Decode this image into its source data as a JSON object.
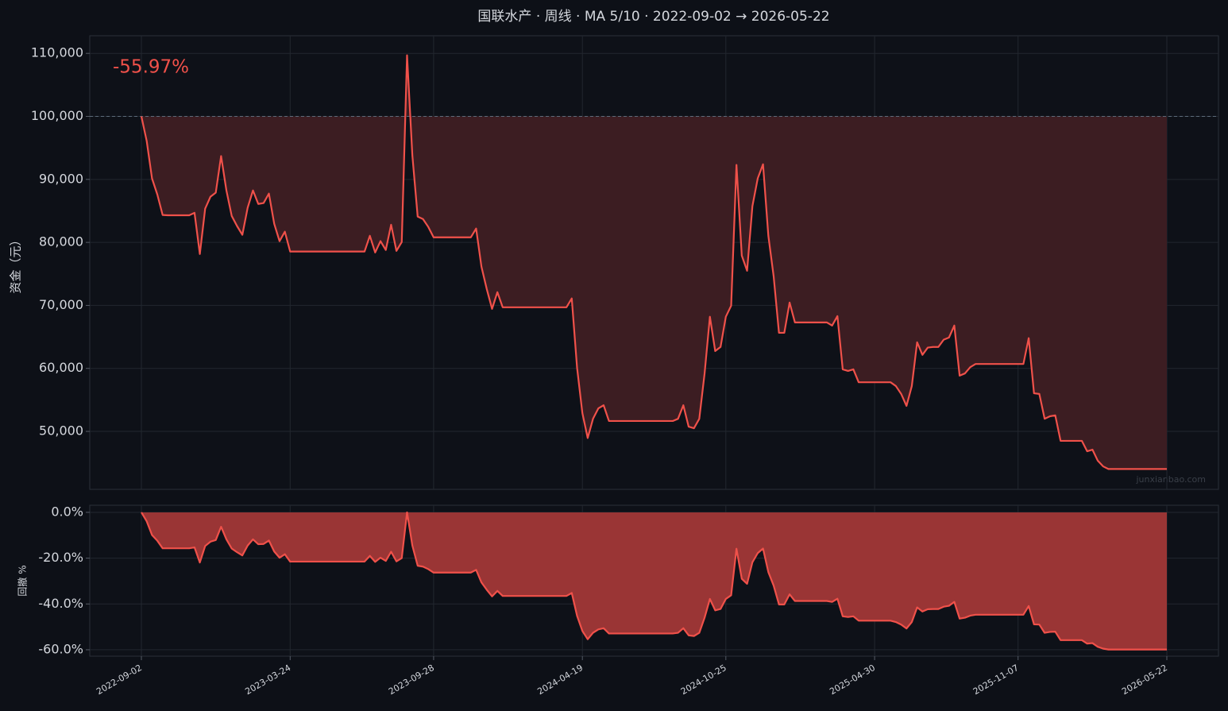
{
  "chart_data": [
    {
      "type": "line",
      "title": "国联水产 · 周线 · MA 5/10 · 2022-09-02 → 2026-05-22",
      "ylabel": "资金（元）",
      "annotation": "-55.97%",
      "watermark": "junxianbao.com",
      "color": "#f0514a",
      "fill_color": "#3c1d22",
      "baseline": 100000,
      "grid": true,
      "ylim": [
        40800,
        112800
      ],
      "yticks": [
        {
          "value": 50000,
          "label": "50,000"
        },
        {
          "value": 60000,
          "label": "60,000"
        },
        {
          "value": 70000,
          "label": "70,000"
        },
        {
          "value": 80000,
          "label": "80,000"
        },
        {
          "value": 90000,
          "label": "90,000"
        },
        {
          "value": 100000,
          "label": "100,000"
        },
        {
          "value": 110000,
          "label": "110,000"
        }
      ],
      "values": [
        100000,
        96100,
        90150,
        87600,
        84350,
        84300,
        84300,
        84300,
        84300,
        84300,
        84700,
        78150,
        85350,
        87250,
        87900,
        93700,
        88250,
        84200,
        82600,
        81200,
        85500,
        88250,
        86100,
        86250,
        87750,
        82950,
        80200,
        81700,
        78550,
        78550,
        78550,
        78550,
        78550,
        78550,
        78550,
        78550,
        78550,
        78550,
        78550,
        78550,
        78550,
        78550,
        78550,
        81050,
        78400,
        80200,
        78800,
        82800,
        78650,
        80050,
        109700,
        93800,
        84100,
        83700,
        82450,
        80800,
        80800,
        80800,
        80800,
        80800,
        80800,
        80800,
        80800,
        82200,
        76150,
        72600,
        69450,
        72100,
        69700,
        69700,
        69700,
        69700,
        69700,
        69700,
        69700,
        69700,
        69700,
        69700,
        69700,
        69700,
        69700,
        71100,
        60100,
        52900,
        48950,
        52000,
        53650,
        54150,
        51650,
        51650,
        51650,
        51650,
        51650,
        51650,
        51650,
        51650,
        51650,
        51650,
        51650,
        51650,
        51650,
        52000,
        54150,
        50750,
        50500,
        52000,
        59200,
        68200,
        62750,
        63400,
        68200,
        69950,
        92300,
        77900,
        75500,
        85750,
        90150,
        92400,
        81050,
        74600,
        65650,
        65650,
        70450,
        67300,
        67300,
        67300,
        67300,
        67300,
        67300,
        67300,
        66800,
        68300,
        59850,
        59600,
        59850,
        57800,
        57800,
        57800,
        57800,
        57800,
        57800,
        57800,
        57200,
        55950,
        54050,
        57200,
        64150,
        62150,
        63300,
        63400,
        63400,
        64550,
        64900,
        66800,
        58850,
        59200,
        60200,
        60700,
        60700,
        60700,
        60700,
        60700,
        60700,
        60700,
        60700,
        60700,
        60700,
        64800,
        56050,
        55950,
        52000,
        52400,
        52550,
        48500,
        48500,
        48500,
        48500,
        48500,
        46850,
        47100,
        45350,
        44450,
        44030,
        44030,
        44030,
        44030,
        44030,
        44030,
        44030,
        44030,
        44030,
        44030,
        44030,
        44030
      ]
    },
    {
      "type": "area",
      "ylabel": "回撤 %",
      "color": "#f0514a",
      "fill_color": "#9a3535",
      "grid": true,
      "ylim": [
        -62.8,
        3.1
      ],
      "yticks": [
        {
          "value": -60,
          "label": "-60.0%"
        },
        {
          "value": -40,
          "label": "-40.0%"
        },
        {
          "value": -20,
          "label": "-20.0%"
        },
        {
          "value": 0,
          "label": "0.0%"
        }
      ],
      "categories": [
        "2022-09-02",
        null,
        null,
        null,
        null,
        null,
        null,
        null,
        null,
        null,
        null,
        null,
        null,
        null,
        null,
        null,
        null,
        null,
        null,
        null,
        null,
        null,
        null,
        null,
        null,
        null,
        null,
        null,
        "2023-03-24",
        null,
        null,
        null,
        null,
        null,
        null,
        null,
        null,
        null,
        null,
        null,
        null,
        null,
        null,
        null,
        null,
        null,
        null,
        null,
        null,
        null,
        null,
        null,
        null,
        null,
        null,
        "2023-09-28",
        null,
        null,
        null,
        null,
        null,
        null,
        null,
        null,
        null,
        null,
        null,
        null,
        null,
        null,
        null,
        null,
        null,
        null,
        null,
        null,
        null,
        null,
        null,
        null,
        null,
        null,
        null,
        "2024-04-19",
        null,
        null,
        null,
        null,
        null,
        null,
        null,
        null,
        null,
        null,
        null,
        null,
        null,
        null,
        null,
        null,
        null,
        null,
        null,
        null,
        null,
        null,
        null,
        null,
        null,
        null,
        "2024-10-25",
        null,
        null,
        null,
        null,
        null,
        null,
        null,
        null,
        null,
        null,
        null,
        null,
        null,
        null,
        null,
        null,
        null,
        null,
        null,
        null,
        null,
        null,
        null,
        null,
        null,
        null,
        null,
        "2025-04-30",
        null,
        null,
        null,
        null,
        null,
        null,
        null,
        null,
        null,
        null,
        null,
        null,
        null,
        null,
        null,
        null,
        null,
        null,
        null,
        null,
        null,
        null,
        null,
        null,
        null,
        null,
        "2025-11-07",
        null,
        null,
        null,
        null,
        null,
        null,
        null,
        null,
        null,
        null,
        null,
        null,
        null,
        null,
        null,
        null,
        null,
        null,
        null,
        null,
        null,
        null,
        null,
        null,
        null,
        null,
        null,
        "2026-05-22"
      ],
      "values": [
        0,
        -3.9,
        -9.9,
        -12.4,
        -15.7,
        -15.7,
        -15.7,
        -15.7,
        -15.7,
        -15.7,
        -15.3,
        -21.9,
        -14.7,
        -12.8,
        -12.1,
        -6.3,
        -11.8,
        -15.8,
        -17.4,
        -18.8,
        -14.5,
        -11.8,
        -13.9,
        -13.8,
        -12.3,
        -17.1,
        -19.8,
        -18.3,
        -21.5,
        -21.5,
        -21.5,
        -21.5,
        -21.5,
        -21.5,
        -21.5,
        -21.5,
        -21.5,
        -21.5,
        -21.5,
        -21.5,
        -21.5,
        -21.5,
        -21.5,
        -19.0,
        -21.6,
        -19.8,
        -21.2,
        -17.2,
        -21.4,
        -20.0,
        0,
        -14.5,
        -23.3,
        -23.7,
        -24.8,
        -26.3,
        -26.3,
        -26.3,
        -26.3,
        -26.3,
        -26.3,
        -26.3,
        -26.3,
        -25.1,
        -30.6,
        -33.8,
        -36.7,
        -34.3,
        -36.5,
        -36.5,
        -36.5,
        -36.5,
        -36.5,
        -36.5,
        -36.5,
        -36.5,
        -36.5,
        -36.5,
        -36.5,
        -36.5,
        -36.5,
        -35.2,
        -45.2,
        -51.8,
        -55.4,
        -52.6,
        -51.1,
        -50.6,
        -52.9,
        -52.9,
        -52.9,
        -52.9,
        -52.9,
        -52.9,
        -52.9,
        -52.9,
        -52.9,
        -52.9,
        -52.9,
        -52.9,
        -52.9,
        -52.6,
        -50.6,
        -53.7,
        -54.0,
        -52.6,
        -46.0,
        -37.8,
        -42.8,
        -42.2,
        -37.8,
        -36.2,
        -15.9,
        -29.0,
        -31.2,
        -21.8,
        -17.8,
        -15.8,
        -26.1,
        -32.0,
        -40.2,
        -40.2,
        -35.8,
        -38.7,
        -38.7,
        -38.7,
        -38.7,
        -38.7,
        -38.7,
        -38.7,
        -39.1,
        -37.7,
        -45.4,
        -45.7,
        -45.4,
        -47.3,
        -47.3,
        -47.3,
        -47.3,
        -47.3,
        -47.3,
        -47.3,
        -47.9,
        -49.0,
        -50.7,
        -47.9,
        -41.5,
        -43.3,
        -42.3,
        -42.2,
        -42.2,
        -41.2,
        -40.8,
        -39.1,
        -46.4,
        -46.0,
        -45.1,
        -44.7,
        -44.7,
        -44.7,
        -44.7,
        -44.7,
        -44.7,
        -44.7,
        -44.7,
        -44.7,
        -44.7,
        -40.9,
        -48.9,
        -49.0,
        -52.6,
        -52.2,
        -52.1,
        -55.8,
        -55.8,
        -55.8,
        -55.8,
        -55.8,
        -57.3,
        -57.1,
        -58.7,
        -59.5,
        -59.9,
        -59.9,
        -59.9,
        -59.9,
        -59.9,
        -59.9,
        -59.9,
        -59.9,
        -59.9,
        -59.9,
        -59.9,
        -59.9
      ]
    }
  ]
}
